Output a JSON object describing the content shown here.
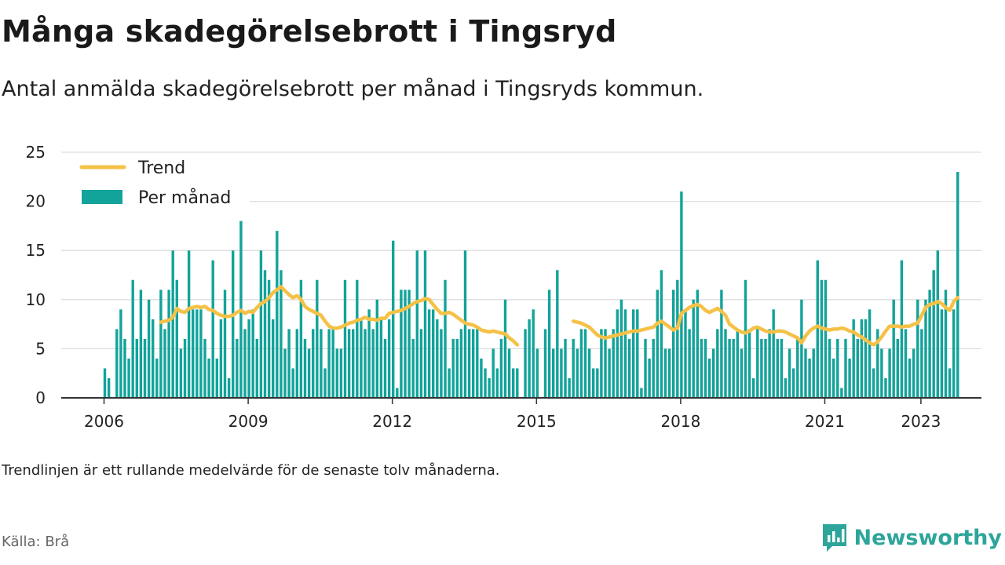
{
  "title": "Många skadegörelsebrott i Tingsryd",
  "subtitle": "Antal anmälda skadegörelsebrott per månad i Tingsryds kommun.",
  "note": "Trendlinjen är ett rullande medelvärde för de senaste tolv månaderna.",
  "source": "Källa: Brå",
  "brand": {
    "name": "Newsworthy",
    "logo_icon": "newsworthy-logo-icon"
  },
  "colors": {
    "bars": "#12a39a",
    "trend": "#f5c146",
    "grid": "#dddddd",
    "axis": "#333333"
  },
  "chart_data": {
    "type": "bar",
    "start": "2006-01",
    "ylim": [
      0,
      25
    ],
    "yticks": [
      0,
      5,
      10,
      15,
      20,
      25
    ],
    "xticks": [
      "2006",
      "2009",
      "2012",
      "2015",
      "2018",
      "2021",
      "2023"
    ],
    "legend_position": "top-left",
    "grid": true,
    "legend": [
      {
        "key": "trend",
        "label": "Trend"
      },
      {
        "key": "bars",
        "label": "Per månad"
      }
    ],
    "series": [
      {
        "name": "Per månad",
        "type": "bar",
        "values": [
          3,
          2,
          null,
          7,
          9,
          6,
          4,
          12,
          6,
          11,
          6,
          10,
          8,
          4,
          11,
          7,
          11,
          15,
          12,
          5,
          6,
          15,
          9,
          9,
          9,
          6,
          4,
          14,
          4,
          8,
          11,
          2,
          15,
          6,
          18,
          7,
          8,
          9,
          6,
          15,
          13,
          12,
          8,
          17,
          13,
          5,
          7,
          3,
          7,
          12,
          6,
          5,
          7,
          12,
          7,
          3,
          7,
          7,
          5,
          5,
          12,
          7,
          7,
          12,
          8,
          7,
          9,
          7,
          10,
          8,
          6,
          8,
          16,
          1,
          11,
          11,
          11,
          6,
          15,
          7,
          15,
          9,
          9,
          8,
          7,
          12,
          3,
          6,
          6,
          7,
          15,
          7,
          7,
          7,
          4,
          3,
          2,
          5,
          3,
          6,
          10,
          5,
          3,
          3,
          null,
          7,
          8,
          9,
          5,
          null,
          7,
          11,
          5,
          13,
          5,
          6,
          2,
          6,
          5,
          7,
          7,
          5,
          3,
          3,
          7,
          7,
          5,
          7,
          9,
          10,
          9,
          6,
          9,
          9,
          1,
          6,
          4,
          6,
          11,
          13,
          5,
          5,
          11,
          12,
          21,
          9,
          7,
          10,
          11,
          6,
          6,
          4,
          5,
          7,
          11,
          7,
          6,
          6,
          7,
          5,
          12,
          7,
          2,
          7,
          6,
          6,
          7,
          9,
          6,
          6,
          2,
          5,
          3,
          6,
          10,
          5,
          4,
          5,
          14,
          12,
          12,
          6,
          4,
          6,
          1,
          6,
          4,
          8,
          6,
          8,
          8,
          9,
          3,
          7,
          5,
          2,
          5,
          10,
          6,
          14,
          7,
          4,
          5,
          10,
          7,
          10,
          11,
          13,
          15,
          9,
          11,
          3,
          9,
          23
        ]
      },
      {
        "name": "Trend",
        "type": "line",
        "values": [
          null,
          null,
          null,
          null,
          null,
          null,
          null,
          null,
          null,
          null,
          null,
          null,
          null,
          null,
          7.7,
          7.8,
          7.9,
          8.2,
          9.1,
          8.8,
          8.7,
          9.1,
          9.2,
          9.3,
          9.2,
          9.3,
          9.0,
          8.9,
          8.6,
          8.4,
          8.3,
          8.3,
          8.4,
          8.7,
          8.9,
          8.6,
          8.8,
          8.7,
          9.2,
          9.6,
          9.8,
          10.2,
          10.7,
          11.0,
          11.3,
          10.9,
          10.5,
          10.2,
          10.4,
          10.0,
          9.3,
          9.0,
          8.8,
          8.6,
          8.4,
          7.8,
          7.3,
          7.1,
          7.1,
          7.2,
          7.4,
          7.6,
          7.7,
          7.9,
          8.0,
          8.2,
          8.0,
          8.0,
          7.9,
          8.1,
          8.1,
          8.6,
          8.7,
          8.8,
          8.9,
          9.1,
          9.3,
          9.6,
          9.8,
          9.9,
          10.1,
          10.0,
          9.5,
          9.0,
          8.6,
          8.6,
          8.7,
          8.5,
          8.2,
          7.9,
          7.6,
          7.5,
          7.4,
          7.2,
          6.9,
          6.8,
          6.7,
          6.8,
          6.7,
          6.6,
          6.5,
          6.1,
          5.8,
          5.4,
          null,
          null,
          null,
          null,
          null,
          null,
          null,
          null,
          null,
          null,
          null,
          null,
          null,
          7.8,
          7.7,
          7.6,
          7.4,
          7.2,
          6.8,
          6.4,
          6.2,
          6.1,
          6.2,
          6.3,
          6.4,
          6.5,
          6.6,
          6.7,
          6.8,
          6.8,
          6.9,
          7.0,
          7.1,
          7.2,
          7.6,
          7.8,
          7.5,
          7.2,
          6.9,
          7.1,
          8.6,
          8.9,
          9.2,
          9.4,
          9.5,
          9.3,
          8.9,
          8.7,
          8.9,
          9.1,
          8.8,
          8.4,
          7.5,
          7.2,
          6.9,
          6.7,
          6.6,
          6.8,
          7.1,
          7.2,
          7.0,
          6.8,
          6.7,
          6.7,
          6.8,
          6.8,
          6.7,
          6.5,
          6.3,
          6.1,
          5.6,
          6.3,
          6.8,
          7.1,
          7.3,
          7.1,
          7.0,
          6.9,
          7.0,
          7.0,
          7.1,
          7.0,
          6.8,
          6.7,
          6.4,
          6.2,
          5.9,
          5.6,
          5.4,
          5.7,
          6.2,
          6.8,
          7.3,
          7.3,
          7.3,
          7.2,
          7.3,
          7.3,
          7.5,
          7.6,
          8.4,
          9.2,
          9.5,
          9.6,
          9.8,
          9.6,
          9.2,
          8.9,
          9.8,
          10.2
        ]
      }
    ]
  }
}
